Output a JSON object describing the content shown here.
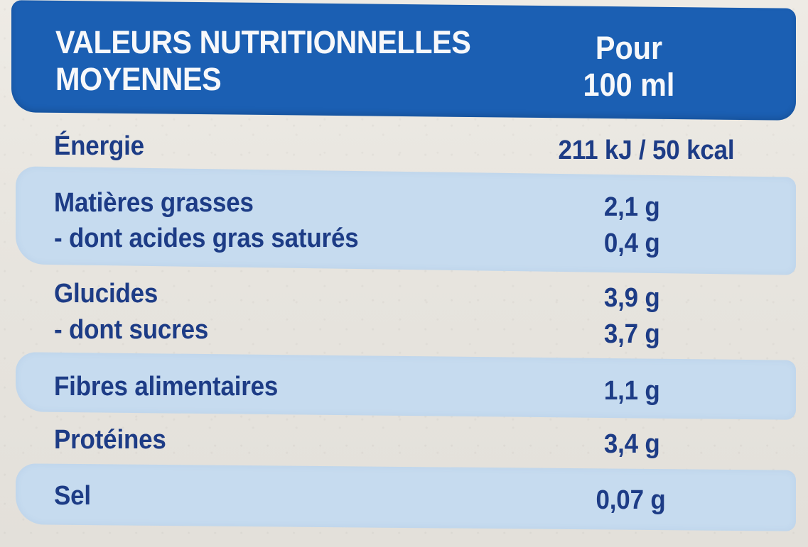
{
  "header": {
    "title_line1": "VALEURS NUTRITIONNELLES",
    "title_line2": "MOYENNES",
    "unit_line1": "Pour",
    "unit_line2": "100 ml"
  },
  "rows": [
    {
      "label": "Énergie",
      "value": "211 kJ / 50 kcal"
    },
    {
      "label": "Matières grasses",
      "value": "2,1 g"
    },
    {
      "label": "- dont acides gras saturés",
      "value": "0,4 g"
    },
    {
      "label": "Glucides",
      "value": "3,9 g"
    },
    {
      "label": "- dont sucres",
      "value": "3,7 g"
    },
    {
      "label": "Fibres alimentaires",
      "value": "1,1 g"
    },
    {
      "label": "Protéines",
      "value": "3,4 g"
    },
    {
      "label": "Sel",
      "value": "0,07 g"
    }
  ],
  "colors": {
    "header_background": "#1b5fb3",
    "header_text": "#f7f8fa",
    "band_background": "#c6dbef",
    "body_text": "#1d3c86",
    "paper": "#e9e6e0"
  }
}
